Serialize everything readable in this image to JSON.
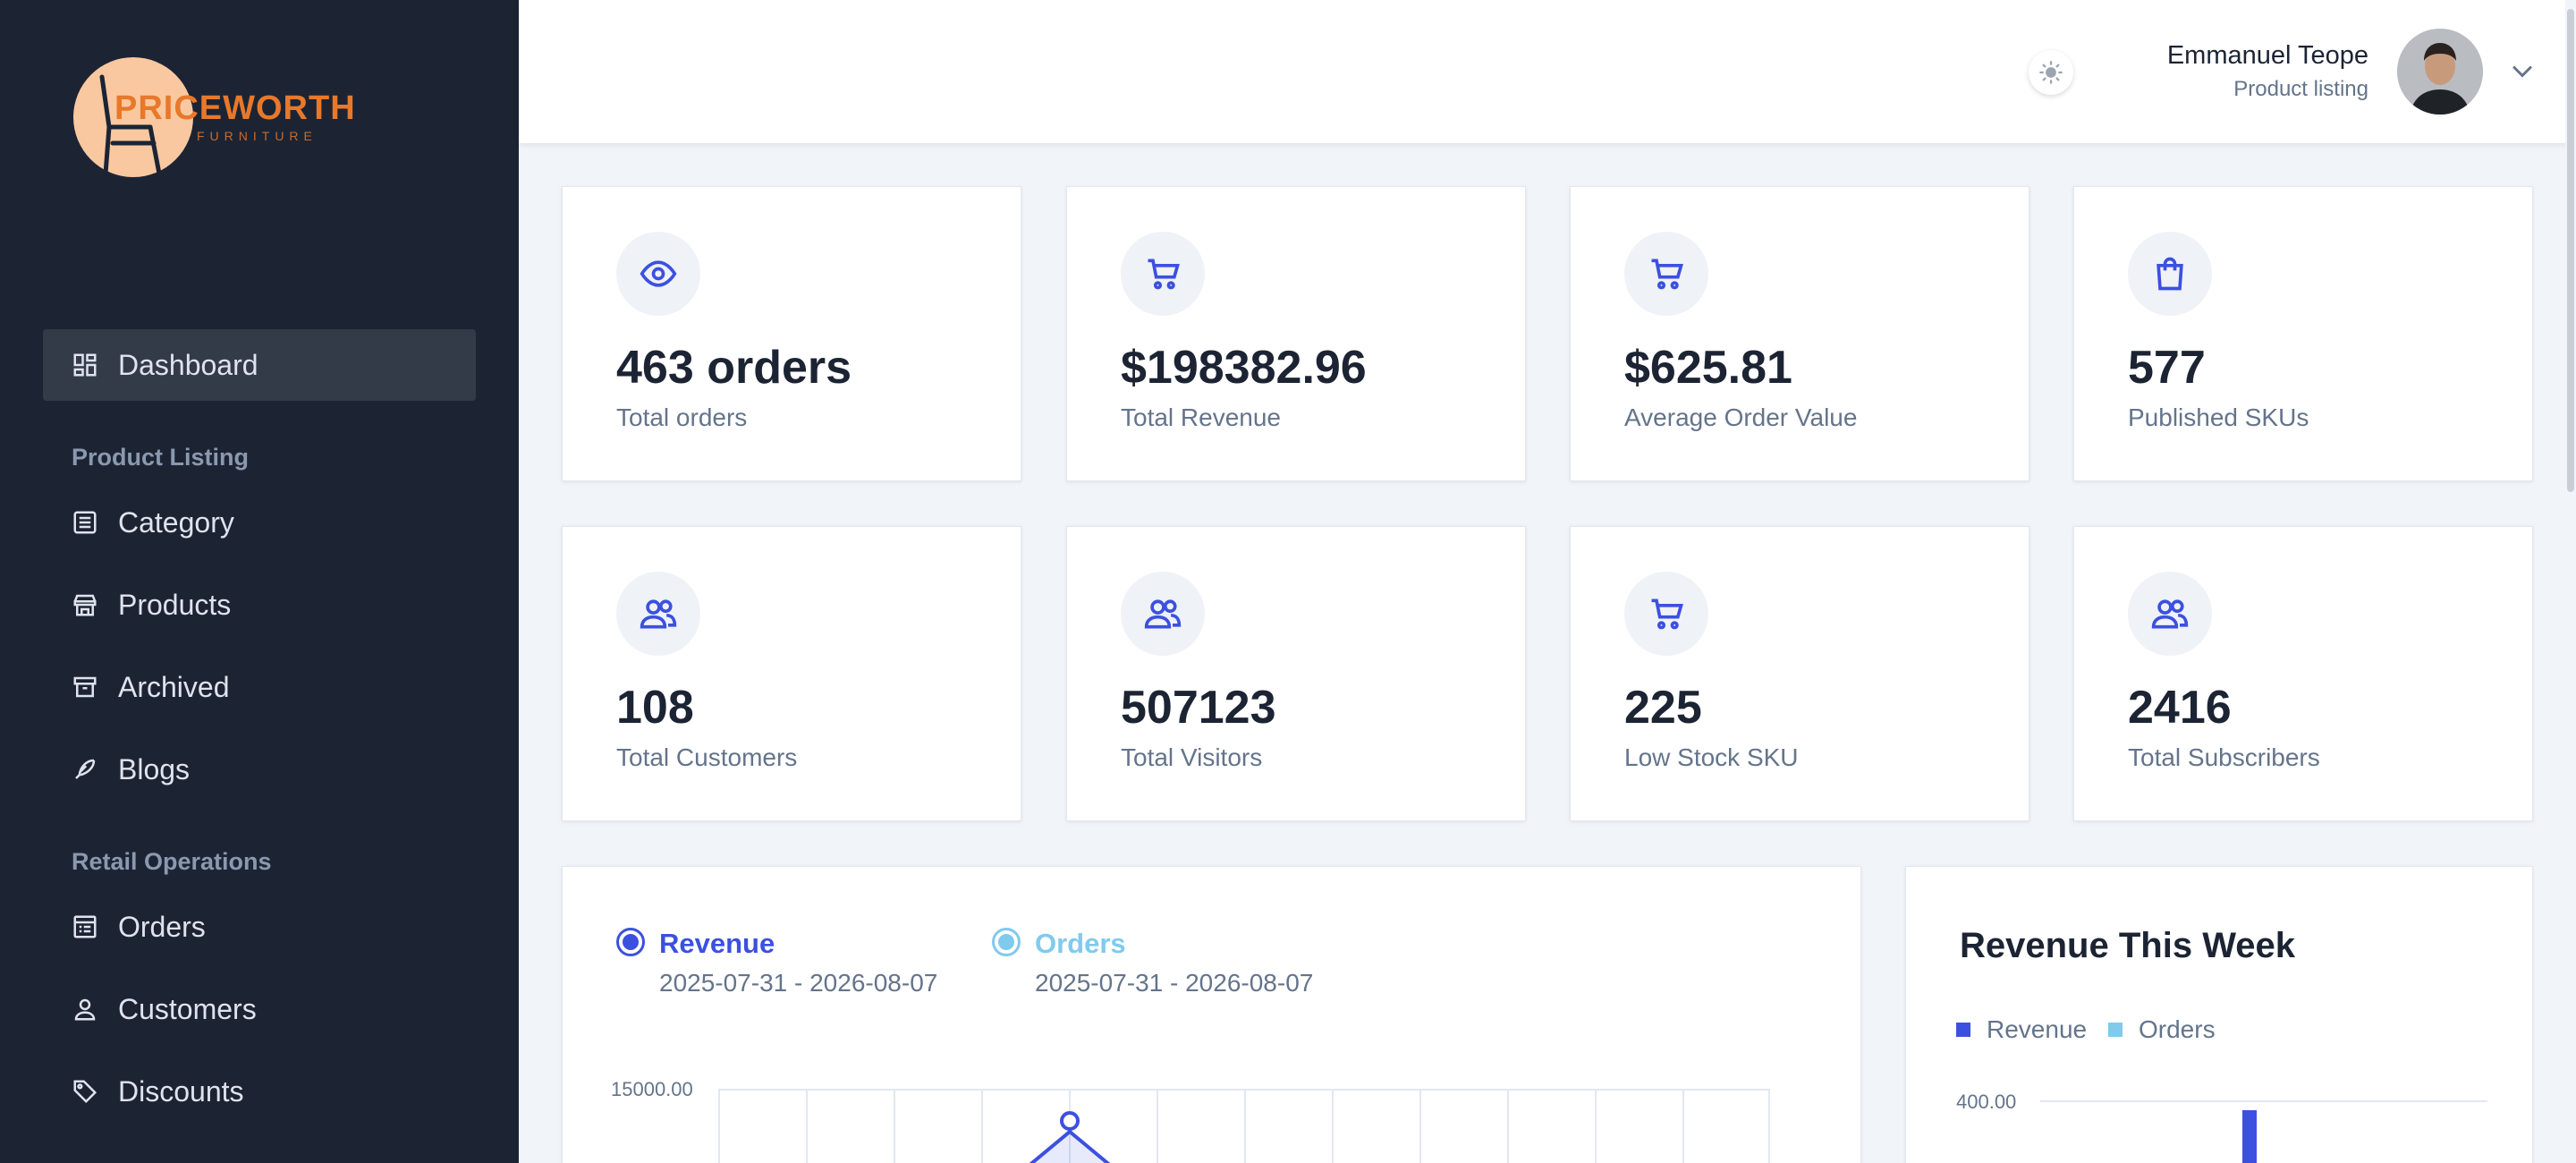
{
  "brand": {
    "name": "PRICEWORTH",
    "sub": "FURNITURE"
  },
  "sidebar": {
    "items": [
      {
        "label": "Dashboard",
        "icon": "grid-icon",
        "active": true
      },
      {
        "label": "Category",
        "icon": "list-icon"
      },
      {
        "label": "Products",
        "icon": "store-icon"
      },
      {
        "label": "Archived",
        "icon": "archive-icon"
      },
      {
        "label": "Blogs",
        "icon": "feather-icon"
      },
      {
        "label": "Orders",
        "icon": "receipt-icon"
      },
      {
        "label": "Customers",
        "icon": "user-icon"
      },
      {
        "label": "Discounts",
        "icon": "tag-icon"
      }
    ],
    "groups": [
      "Product Listing",
      "Retail Operations"
    ]
  },
  "header": {
    "user_name": "Emmanuel Teope",
    "user_role": "Product listing"
  },
  "stats": [
    {
      "value": "463 orders",
      "label": "Total orders",
      "icon": "eye-icon"
    },
    {
      "value": "$198382.96",
      "label": "Total Revenue",
      "icon": "cart-icon"
    },
    {
      "value": "$625.81",
      "label": "Average Order Value",
      "icon": "cart-icon"
    },
    {
      "value": "577",
      "label": "Published SKUs",
      "icon": "bag-icon"
    },
    {
      "value": "108",
      "label": "Total Customers",
      "icon": "users-icon"
    },
    {
      "value": "507123",
      "label": "Total Visitors",
      "icon": "users-icon"
    },
    {
      "value": "225",
      "label": "Low Stock SKU",
      "icon": "cart-icon"
    },
    {
      "value": "2416",
      "label": "Total Subscribers",
      "icon": "users-icon"
    }
  ],
  "revenue_chart": {
    "series": [
      {
        "name": "Revenue",
        "range": "2025-07-31 - 2026-08-07",
        "color": "#3c50e0"
      },
      {
        "name": "Orders",
        "range": "2025-07-31 - 2026-08-07",
        "color": "#80caee"
      }
    ],
    "y_top_label": "15000.00"
  },
  "week_chart": {
    "title": "Revenue This Week",
    "legend": [
      {
        "name": "Revenue",
        "color": "#3c50e0"
      },
      {
        "name": "Orders",
        "color": "#80caee"
      }
    ],
    "y_top_label": "400.00"
  }
}
